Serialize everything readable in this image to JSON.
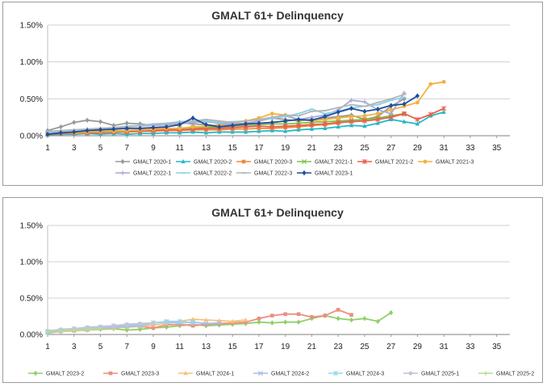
{
  "chart_data": [
    {
      "type": "line",
      "title": "GMALT 61+ Delinquency",
      "yticks": [
        "0.00%",
        "0.50%",
        "1.00%",
        "1.50%"
      ],
      "ylim": [
        0,
        1.5
      ],
      "xlim": [
        1,
        36
      ],
      "xticks": [
        "1",
        "3",
        "5",
        "7",
        "9",
        "11",
        "13",
        "15",
        "17",
        "19",
        "21",
        "23",
        "25",
        "27",
        "29",
        "31",
        "33",
        "35"
      ],
      "series": [
        {
          "name": "GMALT 2020-1",
          "color": "#9a9a9a",
          "marker": "diamond",
          "values": [
            0.07,
            0.12,
            0.18,
            0.21,
            0.19,
            0.14,
            0.17,
            0.16,
            0.14,
            0.15,
            0.18,
            0.16,
            0.15,
            0.13,
            0.15,
            0.17,
            0.2,
            0.24,
            0.22,
            0.2,
            0.22,
            0.24,
            0.26,
            0.28,
            0.22,
            0.26,
            0.4,
            0.5
          ]
        },
        {
          "name": "GMALT 2020-2",
          "color": "#22b8c9",
          "marker": "triangle",
          "values": [
            0.01,
            0.02,
            0.02,
            0.03,
            0.02,
            0.03,
            0.02,
            0.03,
            0.03,
            0.04,
            0.04,
            0.05,
            0.04,
            0.05,
            0.05,
            0.05,
            0.06,
            0.07,
            0.06,
            0.08,
            0.09,
            0.1,
            0.12,
            0.14,
            0.13,
            0.17,
            0.22,
            0.19,
            0.16,
            0.27,
            0.32
          ]
        },
        {
          "name": "GMALT 2020-3",
          "color": "#f08a3c",
          "marker": "square",
          "values": [
            0.02,
            0.03,
            0.03,
            0.04,
            0.04,
            0.05,
            0.05,
            0.06,
            0.06,
            0.07,
            0.07,
            0.08,
            0.08,
            0.08,
            0.09,
            0.09,
            0.1,
            0.1,
            0.11,
            0.12,
            0.14,
            0.15,
            0.17,
            0.2,
            0.22,
            0.24,
            0.27,
            0.3
          ]
        },
        {
          "name": "GMALT 2021-1",
          "color": "#7fc447",
          "marker": "x",
          "values": [
            0.03,
            0.04,
            0.05,
            0.05,
            0.06,
            0.07,
            0.07,
            0.08,
            0.09,
            0.1,
            0.1,
            0.11,
            0.12,
            0.12,
            0.13,
            0.14,
            0.15,
            0.16,
            0.16,
            0.17,
            0.18,
            0.19,
            0.2,
            0.21,
            0.22,
            0.24,
            0.27,
            0.29
          ]
        },
        {
          "name": "GMALT 2021-2",
          "color": "#e8604c",
          "marker": "asterisk",
          "values": [
            0.02,
            0.03,
            0.04,
            0.04,
            0.05,
            0.05,
            0.06,
            0.06,
            0.07,
            0.08,
            0.08,
            0.09,
            0.1,
            0.1,
            0.11,
            0.12,
            0.13,
            0.12,
            0.13,
            0.14,
            0.15,
            0.16,
            0.18,
            0.19,
            0.2,
            0.22,
            0.25,
            0.3,
            0.22,
            0.29,
            0.37
          ]
        },
        {
          "name": "GMALT 2021-3",
          "color": "#f2b13f",
          "marker": "circle",
          "values": [
            0.03,
            0.04,
            0.04,
            0.05,
            0.06,
            0.06,
            0.07,
            0.08,
            0.09,
            0.1,
            0.1,
            0.12,
            0.13,
            0.15,
            0.17,
            0.2,
            0.24,
            0.3,
            0.28,
            0.22,
            0.2,
            0.22,
            0.24,
            0.26,
            0.27,
            0.3,
            0.35,
            0.4,
            0.45,
            0.7,
            0.73
          ]
        },
        {
          "name": "GMALT 2022-1",
          "color": "#a8a8d8",
          "marker": "plus",
          "values": [
            0.04,
            0.06,
            0.07,
            0.09,
            0.1,
            0.11,
            0.12,
            0.13,
            0.14,
            0.15,
            0.16,
            0.18,
            0.19,
            0.17,
            0.16,
            0.17,
            0.2,
            0.24,
            0.27,
            0.22,
            0.25,
            0.28,
            0.35,
            0.48,
            0.46,
            0.35,
            0.3,
            0.58
          ]
        },
        {
          "name": "GMALT 2022-2",
          "color": "#8ad0ec",
          "marker": "dash",
          "values": [
            0.05,
            0.06,
            0.07,
            0.08,
            0.1,
            0.11,
            0.13,
            0.14,
            0.16,
            0.17,
            0.19,
            0.2,
            0.2,
            0.18,
            0.19,
            0.2,
            0.22,
            0.24,
            0.26,
            0.3,
            0.36,
            0.3,
            0.33,
            0.38,
            0.4,
            0.42,
            0.48,
            0.52
          ]
        },
        {
          "name": "GMALT 2022-3",
          "color": "#b5b5b5",
          "marker": "dash",
          "values": [
            0.06,
            0.07,
            0.08,
            0.09,
            0.1,
            0.11,
            0.12,
            0.13,
            0.15,
            0.16,
            0.18,
            0.2,
            0.22,
            0.2,
            0.18,
            0.2,
            0.22,
            0.25,
            0.28,
            0.27,
            0.33,
            0.34,
            0.38,
            0.42,
            0.4,
            0.45,
            0.5,
            0.56
          ]
        },
        {
          "name": "GMALT 2023-1",
          "color": "#1f4f9c",
          "marker": "diamond",
          "values": [
            0.02,
            0.04,
            0.05,
            0.07,
            0.08,
            0.09,
            0.1,
            0.1,
            0.11,
            0.12,
            0.15,
            0.24,
            0.15,
            0.12,
            0.14,
            0.16,
            0.17,
            0.18,
            0.2,
            0.22,
            0.21,
            0.26,
            0.32,
            0.37,
            0.33,
            0.36,
            0.41,
            0.43,
            0.54
          ]
        }
      ]
    },
    {
      "type": "line",
      "title": "GMALT 61+ Delinquency",
      "yticks": [
        "0.00%",
        "0.50%",
        "1.00%",
        "1.50%"
      ],
      "ylim": [
        0,
        1.5
      ],
      "xlim": [
        1,
        36
      ],
      "xticks": [
        "1",
        "3",
        "5",
        "7",
        "9",
        "11",
        "13",
        "15",
        "17",
        "19",
        "21",
        "23",
        "25",
        "27",
        "29",
        "31",
        "33",
        "35"
      ],
      "series": [
        {
          "name": "GMALT 2023-2",
          "color": "#8fd06a",
          "marker": "diamond",
          "values": [
            0.02,
            0.04,
            0.05,
            0.06,
            0.07,
            0.08,
            0.06,
            0.07,
            0.09,
            0.1,
            0.12,
            0.14,
            0.12,
            0.13,
            0.14,
            0.15,
            0.17,
            0.16,
            0.17,
            0.17,
            0.22,
            0.26,
            0.22,
            0.2,
            0.22,
            0.18,
            0.3
          ]
        },
        {
          "name": "GMALT 2023-3",
          "color": "#ec8f80",
          "marker": "square",
          "values": [
            0.04,
            0.05,
            0.06,
            0.07,
            0.09,
            0.1,
            0.12,
            0.11,
            0.09,
            0.13,
            0.14,
            0.12,
            0.14,
            0.15,
            0.16,
            0.17,
            0.22,
            0.26,
            0.28,
            0.28,
            0.24,
            0.26,
            0.34,
            0.27
          ]
        },
        {
          "name": "GMALT 2024-1",
          "color": "#f5c27a",
          "marker": "triangle",
          "values": [
            0.03,
            0.04,
            0.05,
            0.06,
            0.08,
            0.09,
            0.1,
            0.11,
            0.13,
            0.15,
            0.18,
            0.21,
            0.2,
            0.19,
            0.18,
            0.2
          ]
        },
        {
          "name": "GMALT 2024-2",
          "color": "#a7bde8",
          "marker": "x",
          "values": [
            0.03,
            0.05,
            0.06,
            0.07,
            0.09,
            0.1,
            0.11,
            0.12,
            0.16,
            0.17,
            0.16,
            0.17,
            0.15,
            0.16
          ]
        },
        {
          "name": "GMALT 2024-3",
          "color": "#9dd4ef",
          "marker": "asterisk",
          "values": [
            0.04,
            0.06,
            0.08,
            0.09,
            0.1,
            0.12,
            0.13,
            0.14,
            0.16,
            0.18,
            0.18,
            0.16
          ]
        },
        {
          "name": "GMALT 2025-1",
          "color": "#c4c4d9",
          "marker": "circle",
          "values": [
            0.05,
            0.07,
            0.08,
            0.1,
            0.11,
            0.12,
            0.14,
            0.15,
            0.16
          ]
        },
        {
          "name": "GMALT 2025-2",
          "color": "#b2dd95",
          "marker": "plus",
          "values": [
            0.04,
            0.05,
            0.06,
            0.07,
            0.08
          ]
        }
      ]
    }
  ]
}
